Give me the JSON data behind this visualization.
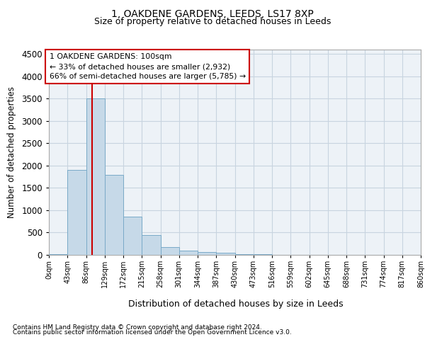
{
  "title1": "1, OAKDENE GARDENS, LEEDS, LS17 8XP",
  "title2": "Size of property relative to detached houses in Leeds",
  "xlabel": "Distribution of detached houses by size in Leeds",
  "ylabel": "Number of detached properties",
  "bin_labels": [
    "0sqm",
    "43sqm",
    "86sqm",
    "129sqm",
    "172sqm",
    "215sqm",
    "258sqm",
    "301sqm",
    "344sqm",
    "387sqm",
    "430sqm",
    "473sqm",
    "516sqm",
    "559sqm",
    "602sqm",
    "645sqm",
    "688sqm",
    "731sqm",
    "774sqm",
    "817sqm",
    "860sqm"
  ],
  "bar_heights": [
    10,
    1900,
    3500,
    1800,
    850,
    450,
    175,
    100,
    60,
    40,
    20,
    10,
    5,
    2,
    1,
    1,
    0,
    0,
    0,
    0
  ],
  "bar_color": "#c6d9e8",
  "bar_edge_color": "#7aaac8",
  "grid_color": "#c8d4e0",
  "background_color": "#edf2f7",
  "vline_x": 100,
  "vline_color": "#cc0000",
  "annotation_text": "1 OAKDENE GARDENS: 100sqm\n← 33% of detached houses are smaller (2,932)\n66% of semi-detached houses are larger (5,785) →",
  "annotation_box_color": "#cc0000",
  "ylim": [
    0,
    4600
  ],
  "yticks": [
    0,
    500,
    1000,
    1500,
    2000,
    2500,
    3000,
    3500,
    4000,
    4500
  ],
  "footer1": "Contains HM Land Registry data © Crown copyright and database right 2024.",
  "footer2": "Contains public sector information licensed under the Open Government Licence v3.0."
}
